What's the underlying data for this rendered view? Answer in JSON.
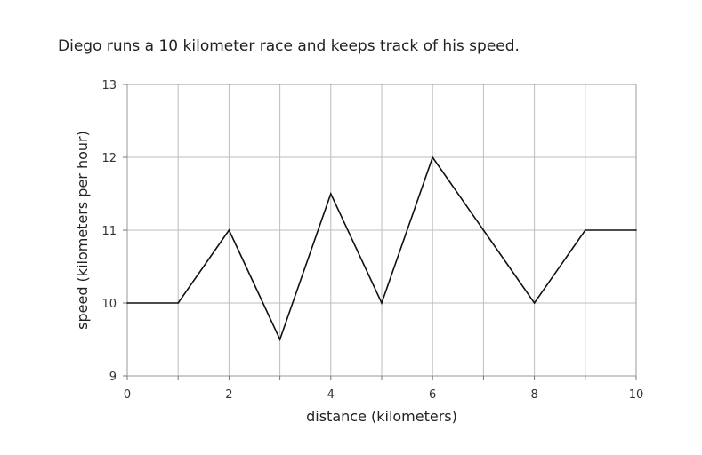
{
  "prompt": "Diego runs a 10 kilometer race and keeps track of his speed.",
  "chart_data": {
    "type": "line",
    "title": "",
    "xlabel": "distance (kilometers)",
    "ylabel": "speed (kilometers per hour)",
    "xlim": [
      0,
      10
    ],
    "ylim": [
      9,
      13
    ],
    "x_ticks": [
      0,
      2,
      4,
      6,
      8,
      10
    ],
    "y_ticks": [
      9,
      10,
      11,
      12,
      13
    ],
    "grid": true,
    "series": [
      {
        "x": [
          0,
          1,
          2,
          3,
          4,
          5,
          6,
          7,
          8,
          9,
          10
        ],
        "values": [
          10,
          10,
          11,
          9.5,
          11.5,
          10,
          12,
          11,
          10,
          11,
          11
        ]
      }
    ],
    "colors": {
      "line": "#111111",
      "grid": "#bdbdbd",
      "frame": "#999999"
    }
  }
}
